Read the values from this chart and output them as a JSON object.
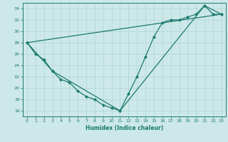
{
  "xlabel": "Humidex (Indice chaleur)",
  "bg_color": "#cde8e8",
  "line_color": "#1a7a6e",
  "grid_color": "#b0d4d4",
  "xlim": [
    -0.5,
    23.5
  ],
  "ylim": [
    15.0,
    35.0
  ],
  "yticks": [
    16,
    18,
    20,
    22,
    24,
    26,
    28,
    30,
    32,
    34
  ],
  "xticks": [
    0,
    1,
    2,
    3,
    4,
    5,
    6,
    7,
    8,
    9,
    10,
    11,
    12,
    13,
    14,
    15,
    16,
    17,
    18,
    19,
    20,
    21,
    22,
    23
  ],
  "series": [
    [
      0,
      28
    ],
    [
      1,
      26
    ],
    [
      2,
      25
    ],
    [
      3,
      23
    ],
    [
      4,
      21.5
    ],
    [
      5,
      21
    ],
    [
      6,
      19.5
    ],
    [
      7,
      18.5
    ],
    [
      8,
      18
    ],
    [
      9,
      17
    ],
    [
      10,
      16.5
    ],
    [
      11,
      16
    ],
    [
      12,
      19
    ],
    [
      13,
      22
    ],
    [
      14,
      25.5
    ],
    [
      15,
      29
    ],
    [
      16,
      31.5
    ],
    [
      17,
      32
    ],
    [
      18,
      32
    ],
    [
      19,
      32.5
    ],
    [
      20,
      33
    ],
    [
      21,
      34.5
    ],
    [
      22,
      33
    ],
    [
      23,
      33
    ]
  ],
  "line2": [
    [
      0,
      28
    ],
    [
      3,
      23
    ],
    [
      11,
      16
    ],
    [
      21,
      34.5
    ],
    [
      23,
      33
    ]
  ],
  "line3": [
    [
      0,
      28
    ],
    [
      23,
      33
    ]
  ]
}
